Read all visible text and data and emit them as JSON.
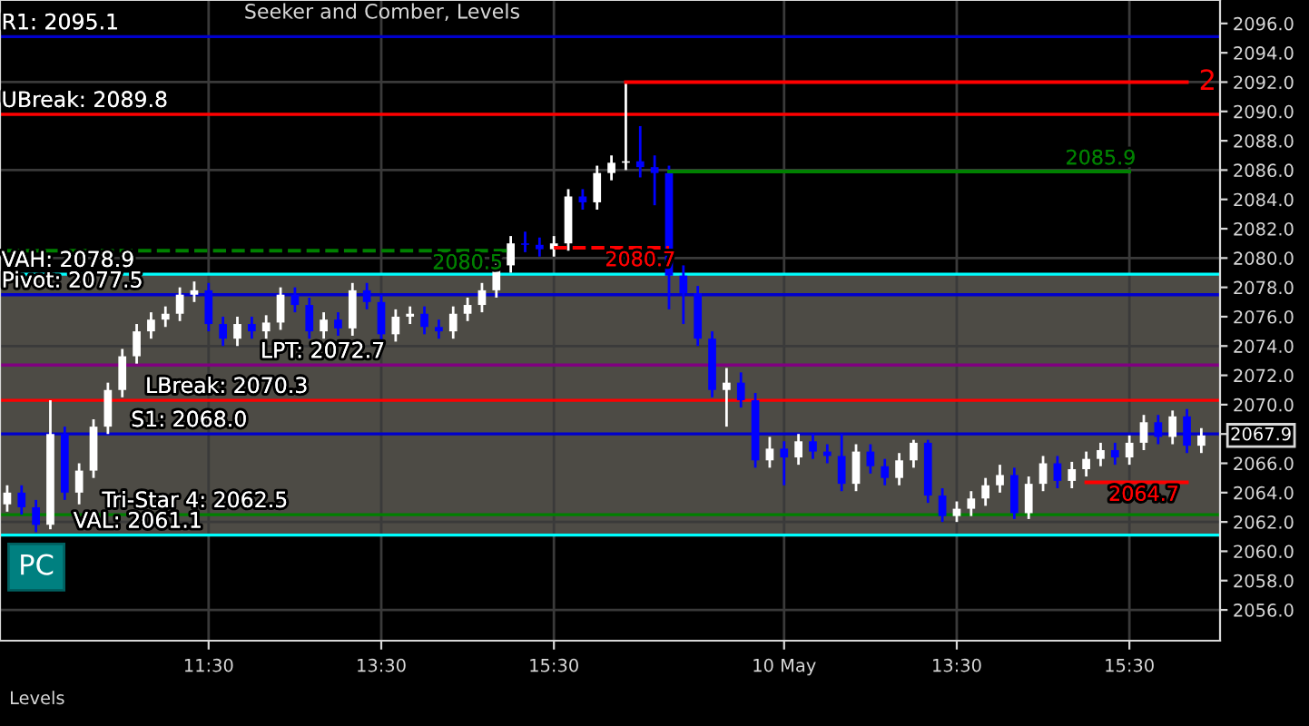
{
  "chart_data": {
    "type": "candlestick",
    "title": "Seeker and Comber, Levels",
    "categories": [
      null,
      null,
      null,
      null,
      null,
      null,
      null,
      null,
      null,
      null,
      null,
      null,
      null,
      null,
      "11:30",
      null,
      null,
      null,
      null,
      null,
      null,
      null,
      null,
      null,
      null,
      null,
      "13:30",
      null,
      null,
      null,
      null,
      null,
      null,
      null,
      null,
      null,
      null,
      null,
      "15:30",
      null,
      null,
      null,
      null,
      null,
      null,
      null,
      null,
      null,
      null,
      null,
      null,
      null,
      null,
      null,
      "10 May",
      null,
      null,
      null,
      null,
      null,
      null,
      null,
      null,
      null,
      null,
      null,
      "13:30",
      null,
      null,
      null,
      null,
      null,
      null,
      null,
      null,
      null,
      null,
      null,
      "15:30",
      null,
      null,
      null,
      null,
      null
    ],
    "ohlc": [
      [
        2063.2,
        2064.5,
        2062.7,
        2064
      ],
      [
        2064,
        2064.5,
        2062.5,
        2063
      ],
      [
        2063,
        2063.5,
        2061.3,
        2061.8
      ],
      [
        2061.8,
        2070.3,
        2061.5,
        2068
      ],
      [
        2068,
        2068.5,
        2063.5,
        2064
      ],
      [
        2064,
        2066,
        2063.2,
        2065.5
      ],
      [
        2065.5,
        2069,
        2065,
        2068.5
      ],
      [
        2068.5,
        2071.5,
        2068,
        2071
      ],
      [
        2071,
        2073.8,
        2070.5,
        2073.3
      ],
      [
        2073.3,
        2075.5,
        2072.8,
        2075
      ],
      [
        2075,
        2076.3,
        2074.5,
        2075.8
      ],
      [
        2075.8,
        2076.7,
        2075.3,
        2076.2
      ],
      [
        2076.2,
        2078,
        2075.7,
        2077.5
      ],
      [
        2077.5,
        2078.4,
        2077,
        2077.8
      ],
      [
        2077.8,
        2078.3,
        2075,
        2075.5
      ],
      [
        2075.5,
        2076,
        2074,
        2074.5
      ],
      [
        2074.5,
        2076,
        2074,
        2075.5
      ],
      [
        2075.5,
        2076,
        2074.5,
        2075
      ],
      [
        2075,
        2076.1,
        2074.5,
        2075.6
      ],
      [
        2075.6,
        2078,
        2075.1,
        2077.5
      ],
      [
        2077.5,
        2078,
        2076.3,
        2076.8
      ],
      [
        2076.8,
        2077.3,
        2074.5,
        2075
      ],
      [
        2075,
        2076.3,
        2074.5,
        2075.8
      ],
      [
        2075.8,
        2076.3,
        2074.7,
        2075.2
      ],
      [
        2075.2,
        2078.3,
        2074.7,
        2077.8
      ],
      [
        2077.8,
        2078.3,
        2076.5,
        2077
      ],
      [
        2077,
        2077.5,
        2074.3,
        2074.8
      ],
      [
        2074.8,
        2076.5,
        2074.3,
        2076
      ],
      [
        2076,
        2076.7,
        2075.5,
        2076.2
      ],
      [
        2076.2,
        2076.7,
        2074.8,
        2075.3
      ],
      [
        2075.3,
        2075.8,
        2074.5,
        2075
      ],
      [
        2075,
        2076.7,
        2074.5,
        2076.2
      ],
      [
        2076.2,
        2077.3,
        2075.7,
        2076.8
      ],
      [
        2076.8,
        2078.3,
        2076.3,
        2077.8
      ],
      [
        2077.8,
        2080,
        2077.3,
        2079.5
      ],
      [
        2079.5,
        2081.5,
        2079,
        2081
      ],
      [
        2081,
        2081.8,
        2080.4,
        2080.9
      ],
      [
        2080.9,
        2081.4,
        2080.1,
        2080.6
      ],
      [
        2080.6,
        2081.5,
        2080.1,
        2081
      ],
      [
        2081,
        2084.7,
        2080.5,
        2084.2
      ],
      [
        2084.2,
        2084.7,
        2083.3,
        2083.8
      ],
      [
        2083.8,
        2086.3,
        2083.3,
        2085.8
      ],
      [
        2085.8,
        2087,
        2085.3,
        2086.5
      ],
      [
        2086.5,
        2092,
        2086,
        2086.6
      ],
      [
        2086.6,
        2089,
        2085.5,
        2086.2
      ],
      [
        2086.2,
        2087,
        2083.6,
        2085.8
      ],
      [
        2085.8,
        2086.3,
        2076.5,
        2078.8
      ],
      [
        2078.8,
        2079.5,
        2075.5,
        2077.6
      ],
      [
        2077.6,
        2078.1,
        2074,
        2074.5
      ],
      [
        2074.5,
        2075,
        2070.5,
        2071
      ],
      [
        2071,
        2072.5,
        2068.5,
        2071.5
      ],
      [
        2071.5,
        2072.2,
        2069.8,
        2070.3
      ],
      [
        2070.3,
        2070.8,
        2065.7,
        2066.2
      ],
      [
        2066.2,
        2067.8,
        2065.7,
        2067
      ],
      [
        2067,
        2067.5,
        2064.5,
        2066.4
      ],
      [
        2066.4,
        2068,
        2065.9,
        2067.5
      ],
      [
        2067.5,
        2068,
        2066.3,
        2066.8
      ],
      [
        2066.8,
        2067.3,
        2066,
        2066.5
      ],
      [
        2066.5,
        2068,
        2064.1,
        2064.6
      ],
      [
        2064.6,
        2067.3,
        2064.1,
        2066.8
      ],
      [
        2066.8,
        2067.3,
        2065.3,
        2065.8
      ],
      [
        2065.8,
        2066.3,
        2064.5,
        2065
      ],
      [
        2065,
        2066.7,
        2064.5,
        2066.2
      ],
      [
        2066.2,
        2067.6,
        2065.7,
        2067.4
      ],
      [
        2067.4,
        2067.6,
        2063.3,
        2063.8
      ],
      [
        2063.8,
        2064.3,
        2062,
        2062.4
      ],
      [
        2062.4,
        2063.4,
        2062,
        2062.9
      ],
      [
        2062.9,
        2064.1,
        2062.4,
        2063.6
      ],
      [
        2063.6,
        2065,
        2063.1,
        2064.5
      ],
      [
        2064.5,
        2065.9,
        2064,
        2065.2
      ],
      [
        2065.2,
        2065.7,
        2062.2,
        2062.6
      ],
      [
        2062.6,
        2065.1,
        2062.2,
        2064.6
      ],
      [
        2064.6,
        2066.5,
        2064.1,
        2066
      ],
      [
        2066,
        2066.5,
        2064.3,
        2064.8
      ],
      [
        2064.8,
        2066.1,
        2064.3,
        2065.6
      ],
      [
        2065.6,
        2066.8,
        2065.1,
        2066.3
      ],
      [
        2066.3,
        2067.4,
        2065.8,
        2066.9
      ],
      [
        2066.9,
        2067.4,
        2065.9,
        2066.4
      ],
      [
        2066.4,
        2067.9,
        2065.9,
        2067.4
      ],
      [
        2067.4,
        2069.3,
        2066.9,
        2068.8
      ],
      [
        2068.8,
        2069.3,
        2067.3,
        2067.8
      ],
      [
        2067.8,
        2069.6,
        2067.3,
        2069.2
      ],
      [
        2069.2,
        2069.7,
        2066.7,
        2067.2
      ],
      [
        2067.2,
        2068.4,
        2066.7,
        2067.9
      ]
    ],
    "colors": [
      "#ffffff",
      "#0000ff",
      "#0000ff",
      "#ffffff",
      "#0000ff",
      "#ffffff",
      "#ffffff",
      "#ffffff",
      "#ffffff",
      "#ffffff",
      "#ffffff",
      "#ffffff",
      "#ffffff",
      "#ffffff",
      "#0000ff",
      "#0000ff",
      "#ffffff",
      "#0000ff",
      "#ffffff",
      "#ffffff",
      "#0000ff",
      "#0000ff",
      "#ffffff",
      "#0000ff",
      "#ffffff",
      "#0000ff",
      "#0000ff",
      "#ffffff",
      "#ffffff",
      "#0000ff",
      "#0000ff",
      "#ffffff",
      "#ffffff",
      "#ffffff",
      "#ffffff",
      "#ffffff",
      "#0000ff",
      "#0000ff",
      "#ffffff",
      "#ffffff",
      "#0000ff",
      "#ffffff",
      "#ffffff",
      "#ffffff",
      "#0000ff",
      "#0000ff",
      "#0000ff",
      "#0000ff",
      "#0000ff",
      "#0000ff",
      "#ffffff",
      "#0000ff",
      "#0000ff",
      "#ffffff",
      "#0000ff",
      "#ffffff",
      "#0000ff",
      "#0000ff",
      "#0000ff",
      "#ffffff",
      "#0000ff",
      "#0000ff",
      "#ffffff",
      "#ffffff",
      "#0000ff",
      "#0000ff",
      "#ffffff",
      "#ffffff",
      "#ffffff",
      "#ffffff",
      "#0000ff",
      "#ffffff",
      "#ffffff",
      "#0000ff",
      "#ffffff",
      "#ffffff",
      "#ffffff",
      "#0000ff",
      "#ffffff",
      "#ffffff",
      "#0000ff",
      "#ffffff",
      "#0000ff",
      "#ffffff"
    ],
    "series": [
      {
        "type": "line",
        "color": "#ff0000",
        "line_style": "solid",
        "values": [
          null,
          null,
          null,
          null,
          null,
          null,
          null,
          null,
          null,
          null,
          null,
          null,
          null,
          null,
          null,
          null,
          null,
          null,
          null,
          null,
          null,
          null,
          null,
          null,
          null,
          null,
          null,
          null,
          null,
          null,
          null,
          null,
          null,
          null,
          null,
          null,
          null,
          null,
          null,
          null,
          null,
          null,
          null,
          2092,
          2092,
          2092,
          2092,
          2092,
          2092,
          2092,
          2092,
          2092,
          2092,
          2092,
          2092,
          2092,
          2092,
          2092,
          2092,
          2092,
          2092,
          2092,
          2092,
          2092,
          2092,
          2092,
          2092,
          2092,
          2092,
          2092,
          2092,
          2092,
          2092,
          2092,
          2092,
          2092,
          2092,
          2092,
          2092,
          2092,
          2092,
          2092,
          2092,
          null
        ],
        "value_labels": [
          null,
          null,
          null,
          null,
          null,
          null,
          null,
          null,
          null,
          null,
          null,
          null,
          null,
          null,
          null,
          null,
          null,
          null,
          null,
          null,
          null,
          null,
          null,
          null,
          null,
          null,
          null,
          null,
          null,
          null,
          null,
          null,
          null,
          null,
          null,
          null,
          null,
          null,
          null,
          null,
          null,
          null,
          null,
          null,
          null,
          null,
          null,
          null,
          null,
          null,
          null,
          null,
          null,
          null,
          null,
          null,
          null,
          null,
          null,
          null,
          null,
          null,
          null,
          null,
          null,
          null,
          null,
          null,
          null,
          null,
          null,
          null,
          null,
          null,
          null,
          null,
          null,
          null,
          null,
          null,
          null,
          null,
          null,
          null
        ]
      },
      {
        "type": "line",
        "color": "#008000",
        "line_style": "solid",
        "values": [
          null,
          null,
          null,
          null,
          null,
          null,
          null,
          null,
          null,
          null,
          null,
          null,
          null,
          null,
          null,
          null,
          null,
          null,
          null,
          null,
          null,
          null,
          null,
          null,
          null,
          null,
          null,
          null,
          null,
          null,
          null,
          null,
          null,
          null,
          null,
          null,
          null,
          null,
          null,
          null,
          null,
          null,
          null,
          null,
          null,
          null,
          2085.9,
          2085.9,
          2085.9,
          2085.9,
          2085.9,
          2085.9,
          2085.9,
          2085.9,
          2085.9,
          2085.9,
          2085.9,
          2085.9,
          2085.9,
          2085.9,
          2085.9,
          2085.9,
          2085.9,
          2085.9,
          2085.9,
          2085.9,
          2085.9,
          2085.9,
          2085.9,
          2085.9,
          2085.9,
          2085.9,
          2085.9,
          2085.9,
          2085.9,
          2085.9,
          2085.9,
          2085.9,
          2085.9,
          null,
          null,
          null,
          null,
          null
        ],
        "value_labels": [
          null,
          null,
          null,
          null,
          null,
          null,
          null,
          null,
          null,
          null,
          null,
          null,
          null,
          null,
          null,
          null,
          null,
          null,
          null,
          null,
          null,
          null,
          null,
          null,
          null,
          null,
          null,
          null,
          null,
          null,
          null,
          null,
          null,
          null,
          null,
          null,
          null,
          null,
          null,
          null,
          null,
          null,
          null,
          null,
          null,
          null,
          null,
          null,
          null,
          null,
          null,
          null,
          null,
          null,
          null,
          null,
          null,
          null,
          null,
          null,
          null,
          null,
          null,
          null,
          null,
          null,
          null,
          null,
          null,
          null,
          null,
          null,
          null,
          null,
          null,
          null,
          "2085.9",
          null,
          null,
          null,
          null,
          null,
          null,
          null
        ]
      },
      {
        "type": "line",
        "color": "#008000",
        "line_style": "dashed",
        "values": [
          2080.5,
          2080.5,
          2080.5,
          2080.5,
          2080.5,
          2080.5,
          2080.5,
          2080.5,
          2080.5,
          2080.5,
          2080.5,
          2080.5,
          2080.5,
          2080.5,
          2080.5,
          2080.5,
          2080.5,
          2080.5,
          2080.5,
          2080.5,
          2080.5,
          2080.5,
          2080.5,
          2080.5,
          2080.5,
          2080.5,
          2080.5,
          2080.5,
          2080.5,
          2080.5,
          2080.5,
          2080.5,
          2080.5,
          2080.5,
          2080.5,
          2080.5,
          null,
          null,
          null,
          null,
          null,
          null,
          null,
          null,
          null,
          null,
          null,
          null,
          null,
          null,
          null,
          null,
          null,
          null,
          null,
          null,
          null,
          null,
          null,
          null,
          null,
          null,
          null,
          null,
          null,
          null,
          null,
          null,
          null,
          null,
          null,
          null,
          null,
          null,
          null,
          null,
          null,
          null,
          null,
          null,
          null,
          null,
          null,
          null
        ],
        "value_labels": [
          null,
          null,
          null,
          null,
          null,
          null,
          null,
          null,
          null,
          null,
          null,
          null,
          null,
          null,
          null,
          null,
          null,
          null,
          null,
          null,
          null,
          null,
          null,
          null,
          null,
          null,
          null,
          null,
          null,
          null,
          null,
          null,
          "2080.5",
          null,
          null,
          null,
          null,
          null,
          null,
          null,
          null,
          null,
          null,
          null,
          null,
          null,
          null,
          null,
          null,
          null,
          null,
          null,
          null,
          null,
          null,
          null,
          null,
          null,
          null,
          null,
          null,
          null,
          null,
          null,
          null,
          null,
          null,
          null,
          null,
          null,
          null,
          null,
          null,
          null,
          null,
          null,
          null,
          null,
          null,
          null,
          null,
          null,
          null,
          null
        ]
      },
      {
        "type": "line",
        "color": "#ff0000",
        "line_style": "dashed",
        "values": [
          null,
          null,
          null,
          null,
          null,
          null,
          null,
          null,
          null,
          null,
          null,
          null,
          null,
          null,
          null,
          null,
          null,
          null,
          null,
          null,
          null,
          null,
          null,
          null,
          null,
          null,
          null,
          null,
          null,
          null,
          null,
          null,
          null,
          null,
          null,
          null,
          null,
          null,
          2080.7,
          2080.7,
          2080.7,
          2080.7,
          2080.7,
          2080.7,
          2080.7,
          2080.7,
          2080.7,
          null,
          null,
          null,
          null,
          null,
          null,
          null,
          null,
          null,
          null,
          null,
          null,
          null,
          null,
          null,
          null,
          null,
          null,
          null,
          null,
          null,
          null,
          null,
          null,
          null,
          null,
          null,
          null,
          null,
          null,
          null,
          null,
          null,
          null,
          null,
          null,
          null
        ],
        "value_labels": [
          null,
          null,
          null,
          null,
          null,
          null,
          null,
          null,
          null,
          null,
          null,
          null,
          null,
          null,
          null,
          null,
          null,
          null,
          null,
          null,
          null,
          null,
          null,
          null,
          null,
          null,
          null,
          null,
          null,
          null,
          null,
          null,
          null,
          null,
          null,
          null,
          null,
          null,
          null,
          null,
          null,
          null,
          null,
          null,
          "2080.7",
          null,
          null,
          null,
          null,
          null,
          null,
          null,
          null,
          null,
          null,
          null,
          null,
          null,
          null,
          null,
          null,
          null,
          null,
          null,
          null,
          null,
          null,
          null,
          null,
          null,
          null,
          null,
          null,
          null,
          null,
          null,
          null,
          null,
          null,
          null,
          null,
          null,
          null,
          null
        ]
      },
      {
        "type": "line",
        "color": "#ff0000",
        "line_style": "solid",
        "values": [
          null,
          null,
          null,
          null,
          null,
          null,
          null,
          null,
          null,
          null,
          null,
          null,
          null,
          null,
          null,
          null,
          null,
          null,
          null,
          null,
          null,
          null,
          null,
          null,
          null,
          null,
          null,
          null,
          null,
          null,
          null,
          null,
          null,
          null,
          null,
          null,
          null,
          null,
          null,
          null,
          null,
          null,
          null,
          null,
          null,
          null,
          null,
          null,
          null,
          null,
          null,
          null,
          null,
          null,
          null,
          null,
          null,
          null,
          null,
          null,
          null,
          null,
          null,
          null,
          null,
          null,
          null,
          null,
          null,
          null,
          null,
          null,
          null,
          null,
          null,
          2064.7,
          2064.7,
          2064.7,
          2064.7,
          2064.7,
          2064.7,
          2064.7,
          2064.7,
          null
        ],
        "value_labels": [
          null,
          null,
          null,
          null,
          null,
          null,
          null,
          null,
          null,
          null,
          null,
          null,
          null,
          null,
          null,
          null,
          null,
          null,
          null,
          null,
          null,
          null,
          null,
          null,
          null,
          null,
          null,
          null,
          null,
          null,
          null,
          null,
          null,
          null,
          null,
          null,
          null,
          null,
          null,
          null,
          null,
          null,
          null,
          null,
          null,
          null,
          null,
          null,
          null,
          null,
          null,
          null,
          null,
          null,
          null,
          null,
          null,
          null,
          null,
          null,
          null,
          null,
          null,
          null,
          null,
          null,
          null,
          null,
          null,
          null,
          null,
          null,
          null,
          null,
          null,
          null,
          null,
          null,
          null,
          "2064.7",
          null,
          null,
          null,
          null
        ]
      }
    ],
    "ref_lines": [
      {
        "axis": "y",
        "value": 2056,
        "color": "#3a3a3a"
      },
      {
        "axis": "y",
        "value": 2062,
        "color": "#3a3a3a"
      },
      {
        "axis": "y",
        "value": 2074,
        "color": "#3a3a3a"
      },
      {
        "axis": "y",
        "value": 2080,
        "color": "#3a3a3a"
      },
      {
        "axis": "y",
        "value": 2086,
        "color": "#3a3a3a"
      },
      {
        "axis": "y",
        "value": 2092,
        "color": "#3a3a3a"
      },
      {
        "axis": "y",
        "value": 2095.1,
        "label": "R1: 2095.1",
        "color": "#0000cc"
      },
      {
        "axis": "y",
        "value": 2089.8,
        "label": "UBreak: 2089.8",
        "color": "#ff0000"
      },
      {
        "axis": "y",
        "value": 2078.9,
        "label": "VAH: 2078.9",
        "color": "#00ffff"
      },
      {
        "axis": "y",
        "value": 2077.5,
        "label": "Pivot: 2077.5",
        "color": "#0000cc"
      },
      {
        "axis": "y",
        "value": 2072.7,
        "label": "LPT: 2072.7",
        "color": "#800080"
      },
      {
        "axis": "y",
        "value": 2070.3,
        "label": "LBreak: 2070.3",
        "color": "#ff0000"
      },
      {
        "axis": "y",
        "value": 2068.0,
        "label": "S1: 2068.0",
        "color": "#0000cc"
      },
      {
        "axis": "y",
        "value": 2062.5,
        "label": "Tri-Star 4: 2062.5",
        "color": "#008000"
      },
      {
        "axis": "y",
        "value": 2061.1,
        "label": "VAL: 2061.1",
        "color": "#00ffff"
      }
    ],
    "bands": [
      {
        "axis": "y",
        "from": 2061.1,
        "to": 2078.9,
        "color": "#4d4b45"
      }
    ],
    "annotations": [
      "PC",
      "Levels",
      "2067.9",
      {
        "text": "2",
        "y": 2092
      }
    ],
    "ylim": [
      2053.9,
      2097.6
    ],
    "yticks": [
      {
        "value": 2056,
        "label": "2056.0"
      },
      {
        "value": 2058,
        "label": "2058.0"
      },
      {
        "value": 2060,
        "label": "2060.0"
      },
      {
        "value": 2062,
        "label": "2062.0"
      },
      {
        "value": 2064,
        "label": "2064.0"
      },
      {
        "value": 2066,
        "label": "2066.0"
      },
      {
        "value": 2068,
        "label": null
      },
      {
        "value": 2070,
        "label": "2070.0"
      },
      {
        "value": 2072,
        "label": "2072.0"
      },
      {
        "value": 2074,
        "label": "2074.0"
      },
      {
        "value": 2076,
        "label": "2076.0"
      },
      {
        "value": 2078,
        "label": "2078.0"
      },
      {
        "value": 2080,
        "label": "2080.0"
      },
      {
        "value": 2082,
        "label": "2082.0"
      },
      {
        "value": 2084,
        "label": "2084.0"
      },
      {
        "value": 2086,
        "label": "2086.0"
      },
      {
        "value": 2088,
        "label": "2088.0"
      },
      {
        "value": 2090,
        "label": "2090.0"
      },
      {
        "value": 2092,
        "label": "2092.0"
      },
      {
        "value": 2094,
        "label": "2094.0"
      },
      {
        "value": 2096,
        "label": "2096.0"
      }
    ],
    "grid": "x"
  }
}
